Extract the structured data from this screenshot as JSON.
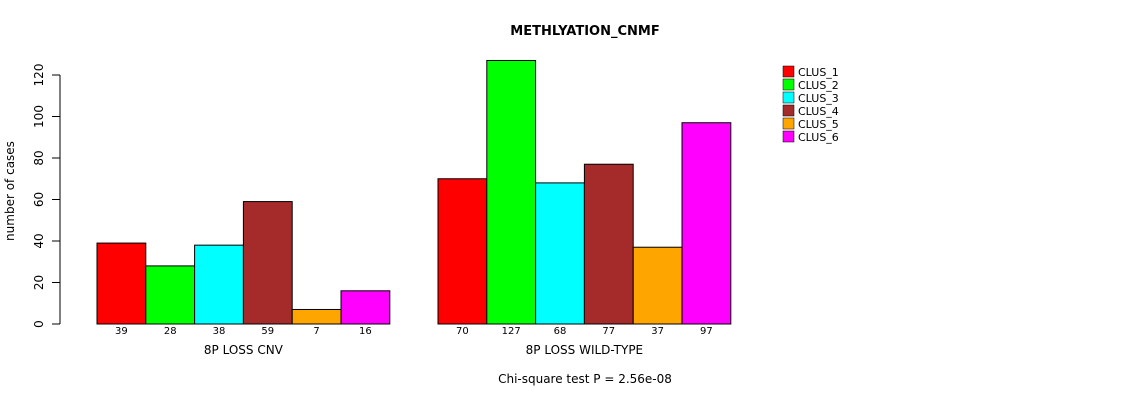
{
  "chart_data": {
    "type": "bar",
    "title": "METHLYATION_CNMF",
    "ylabel": "number of cases",
    "ylim": [
      0,
      120
    ],
    "yticks": [
      0,
      20,
      40,
      60,
      80,
      100,
      120
    ],
    "groups": [
      "8P LOSS CNV",
      "8P LOSS WILD-TYPE"
    ],
    "series": [
      {
        "name": "CLUS_1",
        "color": "#FF0000",
        "values": [
          39,
          70
        ]
      },
      {
        "name": "CLUS_2",
        "color": "#00FF00",
        "values": [
          28,
          127
        ]
      },
      {
        "name": "CLUS_3",
        "color": "#00FFFF",
        "values": [
          38,
          68
        ]
      },
      {
        "name": "CLUS_4",
        "color": "#A52A2A",
        "values": [
          59,
          77
        ]
      },
      {
        "name": "CLUS_5",
        "color": "#FFA500",
        "values": [
          7,
          37
        ]
      },
      {
        "name": "CLUS_6",
        "color": "#FF00FF",
        "values": [
          16,
          97
        ]
      }
    ],
    "footnote": "Chi-square test P = 2.56e-08",
    "legend_position": "top-right",
    "grid": false
  }
}
